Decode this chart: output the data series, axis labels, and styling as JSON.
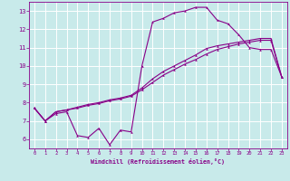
{
  "xlabel": "Windchill (Refroidissement éolien,°C)",
  "bg_color": "#c8eaea",
  "line_color": "#880088",
  "grid_color": "#ffffff",
  "xmin": -0.5,
  "xmax": 23.5,
  "ymin": 5.5,
  "ymax": 13.5,
  "curve1_x": [
    0,
    1,
    2,
    3,
    4,
    5,
    6,
    7,
    8,
    9,
    10,
    11,
    12,
    13,
    14,
    15,
    16,
    17,
    18,
    19,
    20,
    21,
    22,
    23
  ],
  "curve1_y": [
    7.7,
    7.0,
    7.4,
    7.5,
    6.2,
    6.1,
    6.6,
    5.7,
    6.5,
    6.4,
    10.0,
    12.4,
    12.6,
    12.9,
    13.0,
    13.2,
    13.2,
    12.5,
    12.3,
    11.7,
    11.0,
    10.9,
    10.9,
    9.4
  ],
  "curve2_x": [
    0,
    1,
    2,
    3,
    4,
    5,
    6,
    7,
    8,
    9,
    10,
    11,
    12,
    13,
    14,
    15,
    16,
    17,
    18,
    19,
    20,
    21,
    22,
    23
  ],
  "curve2_y": [
    7.7,
    7.0,
    7.5,
    7.6,
    7.7,
    7.85,
    7.95,
    8.1,
    8.2,
    8.35,
    8.7,
    9.1,
    9.5,
    9.8,
    10.1,
    10.35,
    10.65,
    10.9,
    11.05,
    11.2,
    11.3,
    11.4,
    11.4,
    9.4
  ],
  "curve3_x": [
    0,
    1,
    2,
    3,
    4,
    5,
    6,
    7,
    8,
    9,
    10,
    11,
    12,
    13,
    14,
    15,
    16,
    17,
    18,
    19,
    20,
    21,
    22,
    23
  ],
  "curve3_y": [
    7.7,
    7.0,
    7.5,
    7.6,
    7.75,
    7.9,
    8.0,
    8.15,
    8.25,
    8.4,
    8.8,
    9.3,
    9.7,
    10.0,
    10.3,
    10.6,
    10.95,
    11.1,
    11.2,
    11.3,
    11.4,
    11.5,
    11.5,
    9.4
  ],
  "yticks": [
    6,
    7,
    8,
    9,
    10,
    11,
    12,
    13
  ],
  "xticks": [
    0,
    1,
    2,
    3,
    4,
    5,
    6,
    7,
    8,
    9,
    10,
    11,
    12,
    13,
    14,
    15,
    16,
    17,
    18,
    19,
    20,
    21,
    22,
    23
  ],
  "marker_size": 1.8,
  "line_width": 0.8
}
